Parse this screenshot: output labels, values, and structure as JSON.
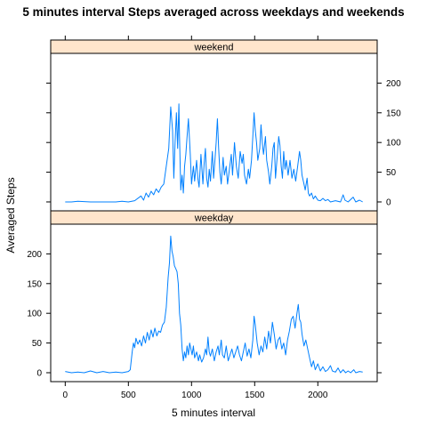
{
  "chart_data": {
    "type": "line",
    "title": "5 minutes interval Steps averaged across weekdays and weekends",
    "xlabel": "5 minutes interval",
    "ylabel": "Averaged Steps",
    "xlim": [
      -115,
      2470
    ],
    "ylim": [
      -15,
      250
    ],
    "x_ticks": [
      "0",
      "500",
      "1000",
      "1500",
      "2000"
    ],
    "y_ticks": [
      "0",
      "50",
      "100",
      "150",
      "200"
    ],
    "colors": {
      "line": "#0080ff",
      "strip": "#ffe5cc",
      "frame": "#000000"
    },
    "grid": false,
    "legend": "none",
    "panels": [
      {
        "label": "weekend",
        "points": [
          [
            0,
            0
          ],
          [
            50,
            0
          ],
          [
            100,
            1
          ],
          [
            200,
            0
          ],
          [
            300,
            0
          ],
          [
            350,
            0
          ],
          [
            400,
            0
          ],
          [
            450,
            1
          ],
          [
            500,
            0
          ],
          [
            550,
            2
          ],
          [
            600,
            10
          ],
          [
            620,
            3
          ],
          [
            640,
            15
          ],
          [
            660,
            8
          ],
          [
            680,
            18
          ],
          [
            700,
            12
          ],
          [
            720,
            22
          ],
          [
            740,
            16
          ],
          [
            760,
            25
          ],
          [
            780,
            30
          ],
          [
            800,
            60
          ],
          [
            820,
            90
          ],
          [
            835,
            160
          ],
          [
            850,
            120
          ],
          [
            860,
            40
          ],
          [
            870,
            100
          ],
          [
            880,
            150
          ],
          [
            890,
            90
          ],
          [
            900,
            165
          ],
          [
            905,
            110
          ],
          [
            915,
            20
          ],
          [
            925,
            45
          ],
          [
            935,
            15
          ],
          [
            945,
            60
          ],
          [
            955,
            80
          ],
          [
            965,
            110
          ],
          [
            975,
            140
          ],
          [
            990,
            80
          ],
          [
            1000,
            30
          ],
          [
            1015,
            60
          ],
          [
            1025,
            35
          ],
          [
            1040,
            70
          ],
          [
            1050,
            40
          ],
          [
            1060,
            25
          ],
          [
            1075,
            80
          ],
          [
            1090,
            30
          ],
          [
            1100,
            65
          ],
          [
            1110,
            90
          ],
          [
            1120,
            40
          ],
          [
            1130,
            25
          ],
          [
            1140,
            55
          ],
          [
            1150,
            35
          ],
          [
            1165,
            85
          ],
          [
            1175,
            40
          ],
          [
            1185,
            70
          ],
          [
            1195,
            100
          ],
          [
            1205,
            140
          ],
          [
            1215,
            90
          ],
          [
            1225,
            50
          ],
          [
            1235,
            30
          ],
          [
            1250,
            75
          ],
          [
            1260,
            45
          ],
          [
            1275,
            60
          ],
          [
            1285,
            30
          ],
          [
            1300,
            55
          ],
          [
            1315,
            80
          ],
          [
            1325,
            45
          ],
          [
            1340,
            100
          ],
          [
            1355,
            60
          ],
          [
            1370,
            40
          ],
          [
            1385,
            85
          ],
          [
            1400,
            65
          ],
          [
            1410,
            80
          ],
          [
            1420,
            45
          ],
          [
            1435,
            30
          ],
          [
            1450,
            55
          ],
          [
            1460,
            40
          ],
          [
            1475,
            70
          ],
          [
            1485,
            110
          ],
          [
            1495,
            150
          ],
          [
            1505,
            120
          ],
          [
            1515,
            100
          ],
          [
            1525,
            70
          ],
          [
            1540,
            90
          ],
          [
            1550,
            130
          ],
          [
            1560,
            100
          ],
          [
            1570,
            80
          ],
          [
            1585,
            110
          ],
          [
            1595,
            70
          ],
          [
            1610,
            50
          ],
          [
            1620,
            30
          ],
          [
            1635,
            60
          ],
          [
            1645,
            90
          ],
          [
            1655,
            100
          ],
          [
            1665,
            40
          ],
          [
            1680,
            80
          ],
          [
            1690,
            110
          ],
          [
            1700,
            95
          ],
          [
            1710,
            60
          ],
          [
            1720,
            40
          ],
          [
            1730,
            85
          ],
          [
            1740,
            55
          ],
          [
            1750,
            70
          ],
          [
            1765,
            45
          ],
          [
            1780,
            70
          ],
          [
            1795,
            40
          ],
          [
            1810,
            55
          ],
          [
            1825,
            35
          ],
          [
            1840,
            60
          ],
          [
            1855,
            85
          ],
          [
            1865,
            70
          ],
          [
            1875,
            45
          ],
          [
            1890,
            30
          ],
          [
            1900,
            20
          ],
          [
            1915,
            40
          ],
          [
            1925,
            15
          ],
          [
            1935,
            10
          ],
          [
            1950,
            15
          ],
          [
            1965,
            5
          ],
          [
            1980,
            10
          ],
          [
            2000,
            3
          ],
          [
            2020,
            2
          ],
          [
            2040,
            6
          ],
          [
            2060,
            2
          ],
          [
            2080,
            4
          ],
          [
            2100,
            0
          ],
          [
            2140,
            2
          ],
          [
            2180,
            0
          ],
          [
            2200,
            12
          ],
          [
            2215,
            3
          ],
          [
            2240,
            0
          ],
          [
            2280,
            8
          ],
          [
            2300,
            0
          ],
          [
            2330,
            3
          ],
          [
            2355,
            0
          ]
        ]
      },
      {
        "label": "weekday",
        "points": [
          [
            0,
            2
          ],
          [
            50,
            0
          ],
          [
            100,
            1
          ],
          [
            150,
            0
          ],
          [
            200,
            3
          ],
          [
            250,
            0
          ],
          [
            300,
            2
          ],
          [
            350,
            0
          ],
          [
            400,
            1
          ],
          [
            450,
            0
          ],
          [
            500,
            2
          ],
          [
            515,
            5
          ],
          [
            530,
            35
          ],
          [
            540,
            50
          ],
          [
            550,
            42
          ],
          [
            560,
            58
          ],
          [
            575,
            48
          ],
          [
            590,
            55
          ],
          [
            605,
            45
          ],
          [
            620,
            62
          ],
          [
            635,
            50
          ],
          [
            650,
            68
          ],
          [
            665,
            55
          ],
          [
            680,
            72
          ],
          [
            695,
            60
          ],
          [
            710,
            75
          ],
          [
            725,
            62
          ],
          [
            740,
            70
          ],
          [
            755,
            68
          ],
          [
            770,
            80
          ],
          [
            785,
            85
          ],
          [
            800,
            110
          ],
          [
            815,
            160
          ],
          [
            825,
            185
          ],
          [
            835,
            230
          ],
          [
            845,
            205
          ],
          [
            855,
            195
          ],
          [
            865,
            180
          ],
          [
            875,
            175
          ],
          [
            885,
            170
          ],
          [
            895,
            150
          ],
          [
            905,
            100
          ],
          [
            915,
            80
          ],
          [
            925,
            40
          ],
          [
            935,
            20
          ],
          [
            945,
            35
          ],
          [
            955,
            25
          ],
          [
            965,
            45
          ],
          [
            975,
            30
          ],
          [
            985,
            50
          ],
          [
            995,
            40
          ],
          [
            1005,
            30
          ],
          [
            1015,
            45
          ],
          [
            1025,
            25
          ],
          [
            1040,
            35
          ],
          [
            1055,
            20
          ],
          [
            1065,
            30
          ],
          [
            1080,
            18
          ],
          [
            1095,
            25
          ],
          [
            1110,
            40
          ],
          [
            1120,
            30
          ],
          [
            1130,
            60
          ],
          [
            1140,
            35
          ],
          [
            1150,
            28
          ],
          [
            1165,
            40
          ],
          [
            1180,
            20
          ],
          [
            1195,
            35
          ],
          [
            1210,
            45
          ],
          [
            1220,
            30
          ],
          [
            1235,
            55
          ],
          [
            1245,
            30
          ],
          [
            1260,
            25
          ],
          [
            1275,
            45
          ],
          [
            1290,
            20
          ],
          [
            1305,
            30
          ],
          [
            1320,
            40
          ],
          [
            1335,
            25
          ],
          [
            1350,
            35
          ],
          [
            1365,
            45
          ],
          [
            1380,
            30
          ],
          [
            1395,
            20
          ],
          [
            1410,
            35
          ],
          [
            1425,
            50
          ],
          [
            1440,
            28
          ],
          [
            1455,
            40
          ],
          [
            1470,
            25
          ],
          [
            1485,
            55
          ],
          [
            1495,
            95
          ],
          [
            1505,
            80
          ],
          [
            1520,
            50
          ],
          [
            1535,
            30
          ],
          [
            1550,
            45
          ],
          [
            1565,
            35
          ],
          [
            1580,
            60
          ],
          [
            1595,
            40
          ],
          [
            1610,
            70
          ],
          [
            1625,
            50
          ],
          [
            1640,
            85
          ],
          [
            1655,
            65
          ],
          [
            1670,
            40
          ],
          [
            1685,
            55
          ],
          [
            1700,
            60
          ],
          [
            1715,
            40
          ],
          [
            1730,
            50
          ],
          [
            1745,
            30
          ],
          [
            1760,
            55
          ],
          [
            1775,
            70
          ],
          [
            1790,
            90
          ],
          [
            1805,
            95
          ],
          [
            1820,
            75
          ],
          [
            1835,
            100
          ],
          [
            1845,
            115
          ],
          [
            1855,
            90
          ],
          [
            1865,
            85
          ],
          [
            1875,
            65
          ],
          [
            1890,
            45
          ],
          [
            1905,
            55
          ],
          [
            1920,
            40
          ],
          [
            1935,
            25
          ],
          [
            1950,
            10
          ],
          [
            1965,
            20
          ],
          [
            1980,
            5
          ],
          [
            2000,
            15
          ],
          [
            2020,
            3
          ],
          [
            2040,
            10
          ],
          [
            2060,
            2
          ],
          [
            2080,
            5
          ],
          [
            2100,
            12
          ],
          [
            2115,
            3
          ],
          [
            2140,
            1
          ],
          [
            2160,
            8
          ],
          [
            2180,
            0
          ],
          [
            2200,
            5
          ],
          [
            2220,
            0
          ],
          [
            2240,
            3
          ],
          [
            2260,
            0
          ],
          [
            2285,
            5
          ],
          [
            2300,
            0
          ],
          [
            2330,
            2
          ],
          [
            2355,
            1
          ]
        ]
      }
    ]
  }
}
